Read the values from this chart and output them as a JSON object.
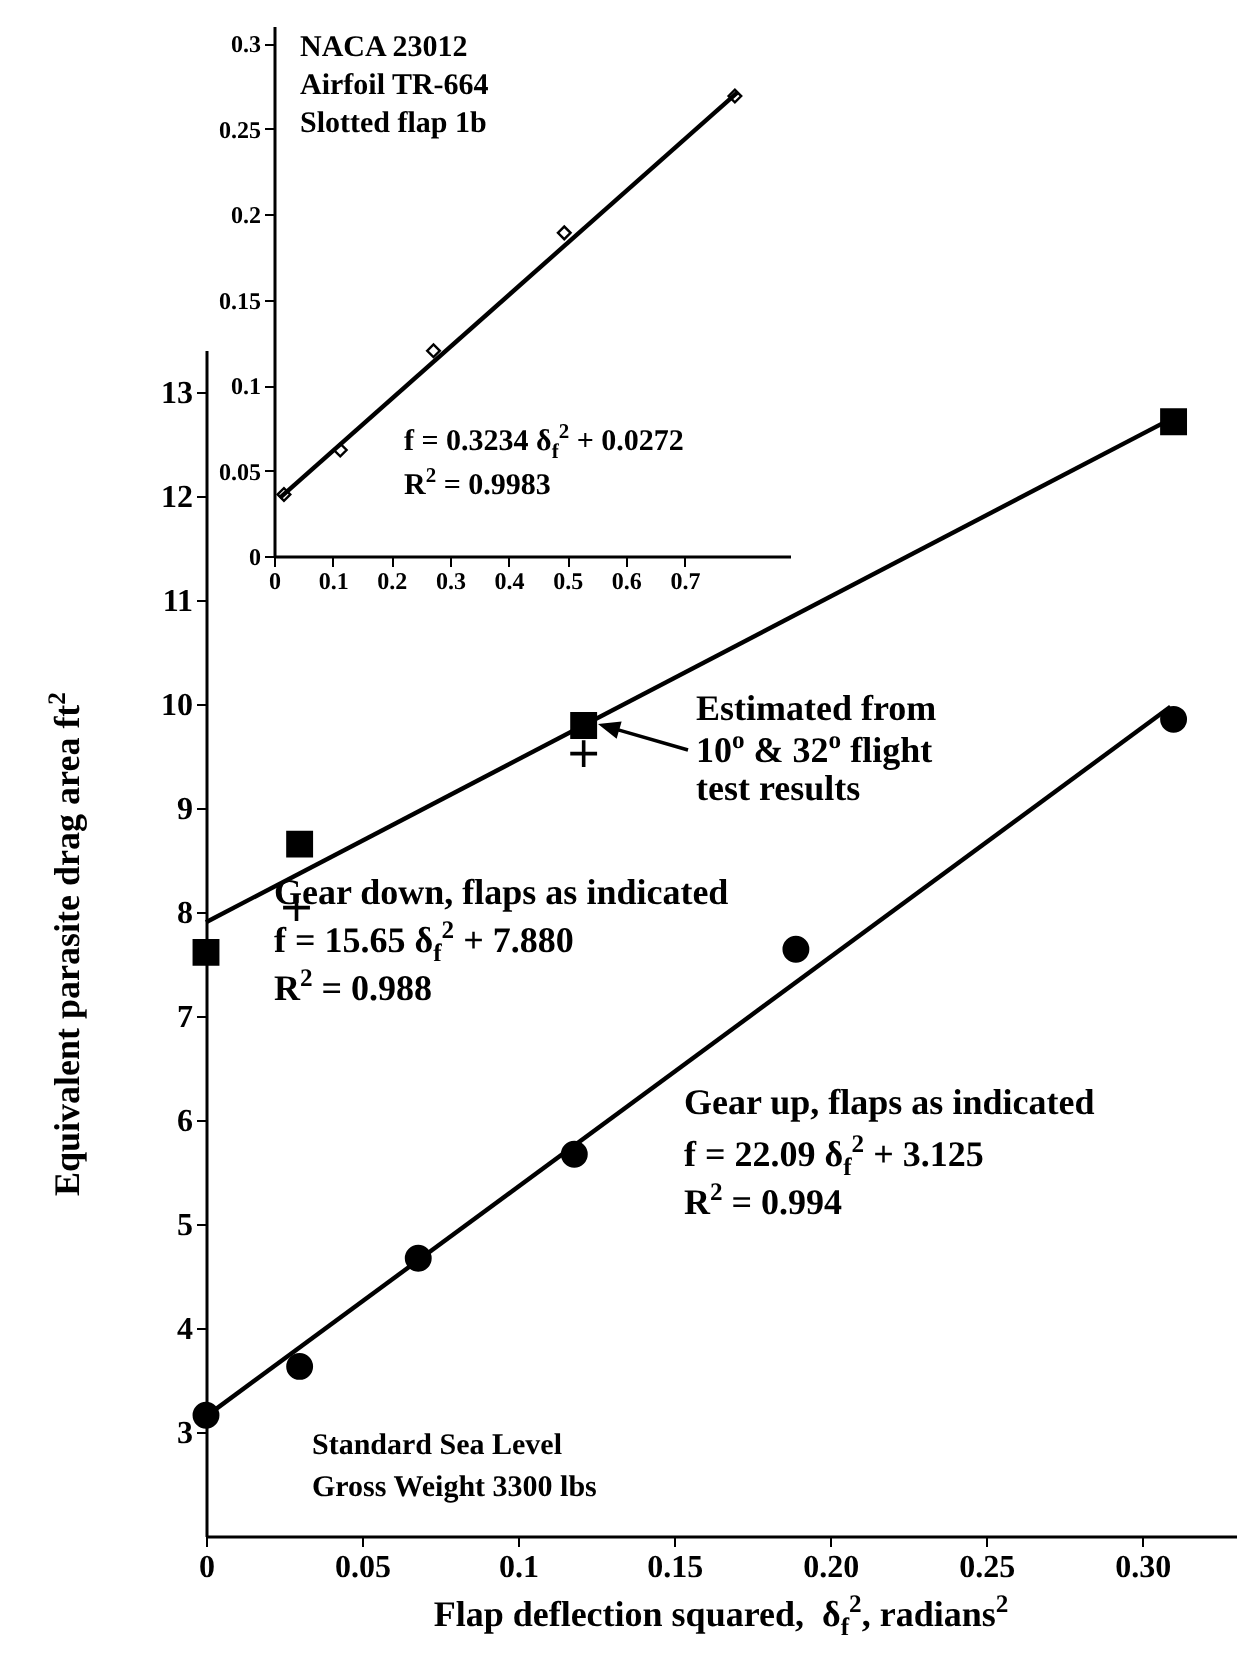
{
  "chart_data": [
    {
      "type": "scatter",
      "xlim": [
        0,
        0.88
      ],
      "ylim": [
        0,
        0.31
      ],
      "xticks": [
        0,
        0.1,
        0.2,
        0.3,
        0.4,
        0.5,
        0.6,
        0.7
      ],
      "yticks": [
        0,
        0.05,
        0.1,
        0.15,
        0.2,
        0.25,
        0.3
      ],
      "grid": false,
      "annotations": [
        "NACA 23012",
        "Airfoil TR-664",
        "Slotted flap 1b",
        "f = 0.3234 δ$_{f}$$^{2}$ + 0.0272",
        "R$^{2}$ = 0.9983"
      ],
      "series": [
        {
          "marker": "diamond",
          "color": "#000000",
          "x": [
            0.017,
            0.113,
            0.272,
            0.495,
            0.786
          ],
          "values": [
            0.036,
            0.062,
            0.12,
            0.189,
            0.269
          ]
        },
        {
          "type": "line",
          "color": "#000000",
          "x": [
            0.01,
            0.79
          ],
          "values": [
            0.034,
            0.271
          ]
        }
      ]
    },
    {
      "type": "scatter",
      "xlim": [
        0,
        0.33
      ],
      "ylim": [
        2,
        13.4
      ],
      "xticks": [
        0,
        0.05,
        0.1,
        0.15,
        {
          "value": 0.2,
          "label": "0.20"
        },
        {
          "value": 0.25,
          "label": "0.25"
        },
        {
          "value": 0.3,
          "label": "0.30"
        }
      ],
      "yticks": [
        3,
        4,
        5,
        6,
        7,
        8,
        9,
        10,
        11,
        12,
        13
      ],
      "grid": false,
      "xlabel": "Flap deflection squared,  δ$_{f}$$^{2}$, radians$^{2}$",
      "ylabel": "Equivalent parasite drag area ft$^{2}$",
      "annotations": [
        "Estimated from\n10$^{o}$ & 32$^{o}$ flight\ntest results",
        "Gear down, flaps as indicated",
        "f = 15.65 δ$_{f}$$^{2}$ + 7.880",
        "R$^{2}$ = 0.988",
        "Gear up, flaps as indicated",
        "f = 22.09 δ$_{f}$$^{2}$ + 3.125",
        "R$^{2}$ = 0.994",
        "Standard Sea Level",
        "Gross Weight 3300 lbs"
      ],
      "series": [
        {
          "type": "line",
          "color": "#000000",
          "x": [
            0,
            0.31
          ],
          "values": [
            7.9,
            12.75
          ]
        },
        {
          "type": "line",
          "color": "#000000",
          "x": [
            0,
            0.309
          ],
          "values": [
            3.15,
            9.97
          ]
        },
        {
          "marker": "square",
          "color": "#000000",
          "x": [
            0,
            0.03,
            0.121,
            0.31
          ],
          "values": [
            7.61,
            8.65,
            9.79,
            12.71
          ]
        },
        {
          "marker": "circle",
          "color": "#000000",
          "x": [
            0,
            0.03,
            0.068,
            0.118,
            0.189,
            0.31
          ],
          "values": [
            3.16,
            3.63,
            4.67,
            5.67,
            7.64,
            9.85
          ]
        },
        {
          "marker": "cross",
          "color": "#000000",
          "x": [
            0.029,
            0.121
          ],
          "values": [
            8.04,
            9.52
          ]
        }
      ]
    }
  ]
}
